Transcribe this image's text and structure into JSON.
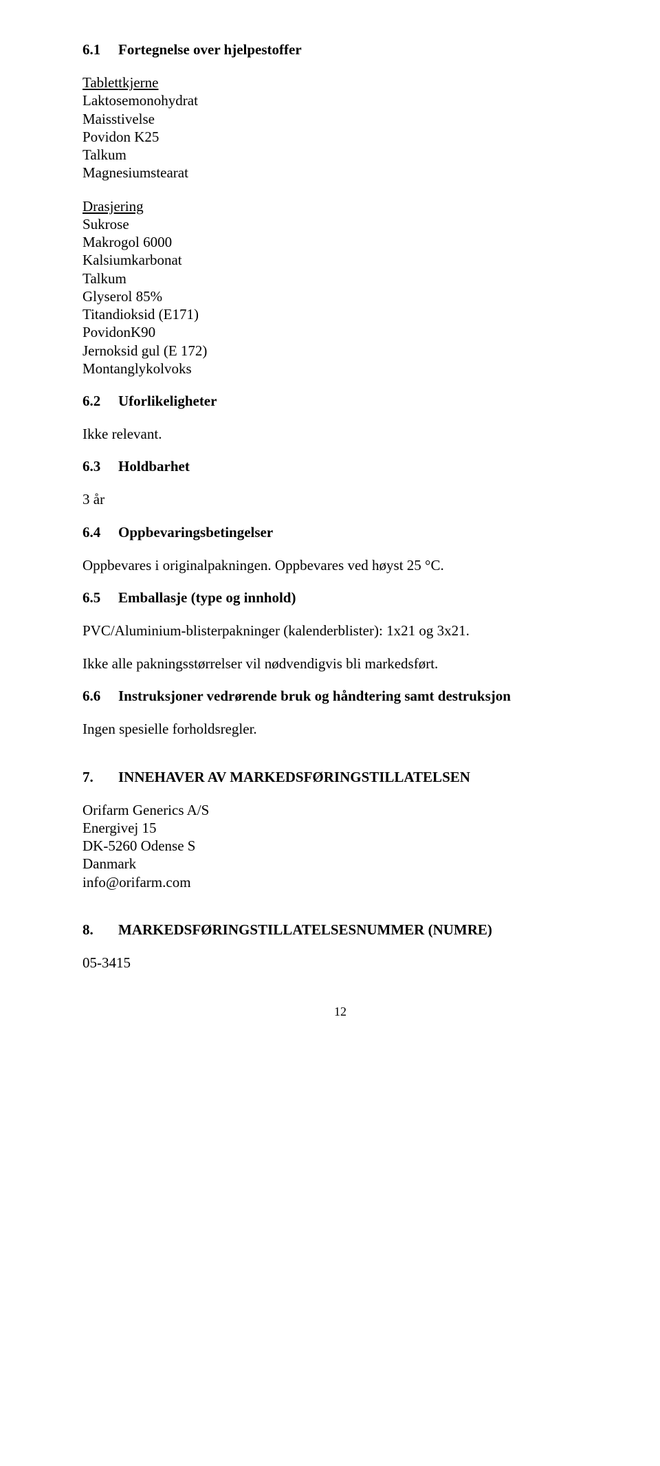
{
  "s61": {
    "num": "6.1",
    "title": "Fortegnelse over hjelpestoffer",
    "group1_heading": "Tablettkjerne",
    "group1_items": [
      "Laktosemonohydrat",
      "Maisstivelse",
      "Povidon K25",
      "Talkum",
      "Magnesiumstearat"
    ],
    "group2_heading": "Drasjering",
    "group2_items": [
      "Sukrose",
      "Makrogol 6000",
      "Kalsiumkarbonat",
      "Talkum",
      "Glyserol 85%",
      "Titandioksid (E171)",
      "PovidonK90",
      "Jernoksid gul (E 172)",
      "Montanglykolvoks"
    ]
  },
  "s62": {
    "num": "6.2",
    "title": "Uforlikeligheter",
    "body": "Ikke relevant."
  },
  "s63": {
    "num": "6.3",
    "title": "Holdbarhet",
    "body": "3 år"
  },
  "s64": {
    "num": "6.4",
    "title": "Oppbevaringsbetingelser",
    "body": "Oppbevares i originalpakningen. Oppbevares ved høyst 25 °C."
  },
  "s65": {
    "num": "6.5",
    "title": "Emballasje (type og innhold)",
    "body1": "PVC/Aluminium-blisterpakninger (kalenderblister): 1x21 og 3x21.",
    "body2": "Ikke alle pakningsstørrelser vil nødvendigvis bli markedsført."
  },
  "s66": {
    "num": "6.6",
    "title": "Instruksjoner vedrørende bruk og håndtering samt destruksjon",
    "body": "Ingen spesielle forholdsregler."
  },
  "s7": {
    "num": "7.",
    "title": "INNEHAVER AV MARKEDSFØRINGSTILLATELSEN",
    "lines": [
      "Orifarm Generics A/S",
      "Energivej 15",
      "DK-5260 Odense S",
      "Danmark",
      "info@orifarm.com"
    ]
  },
  "s8": {
    "num": "8.",
    "title": "MARKEDSFØRINGSTILLATELSESNUMMER (NUMRE)",
    "body": "05-3415"
  },
  "page_number": "12"
}
